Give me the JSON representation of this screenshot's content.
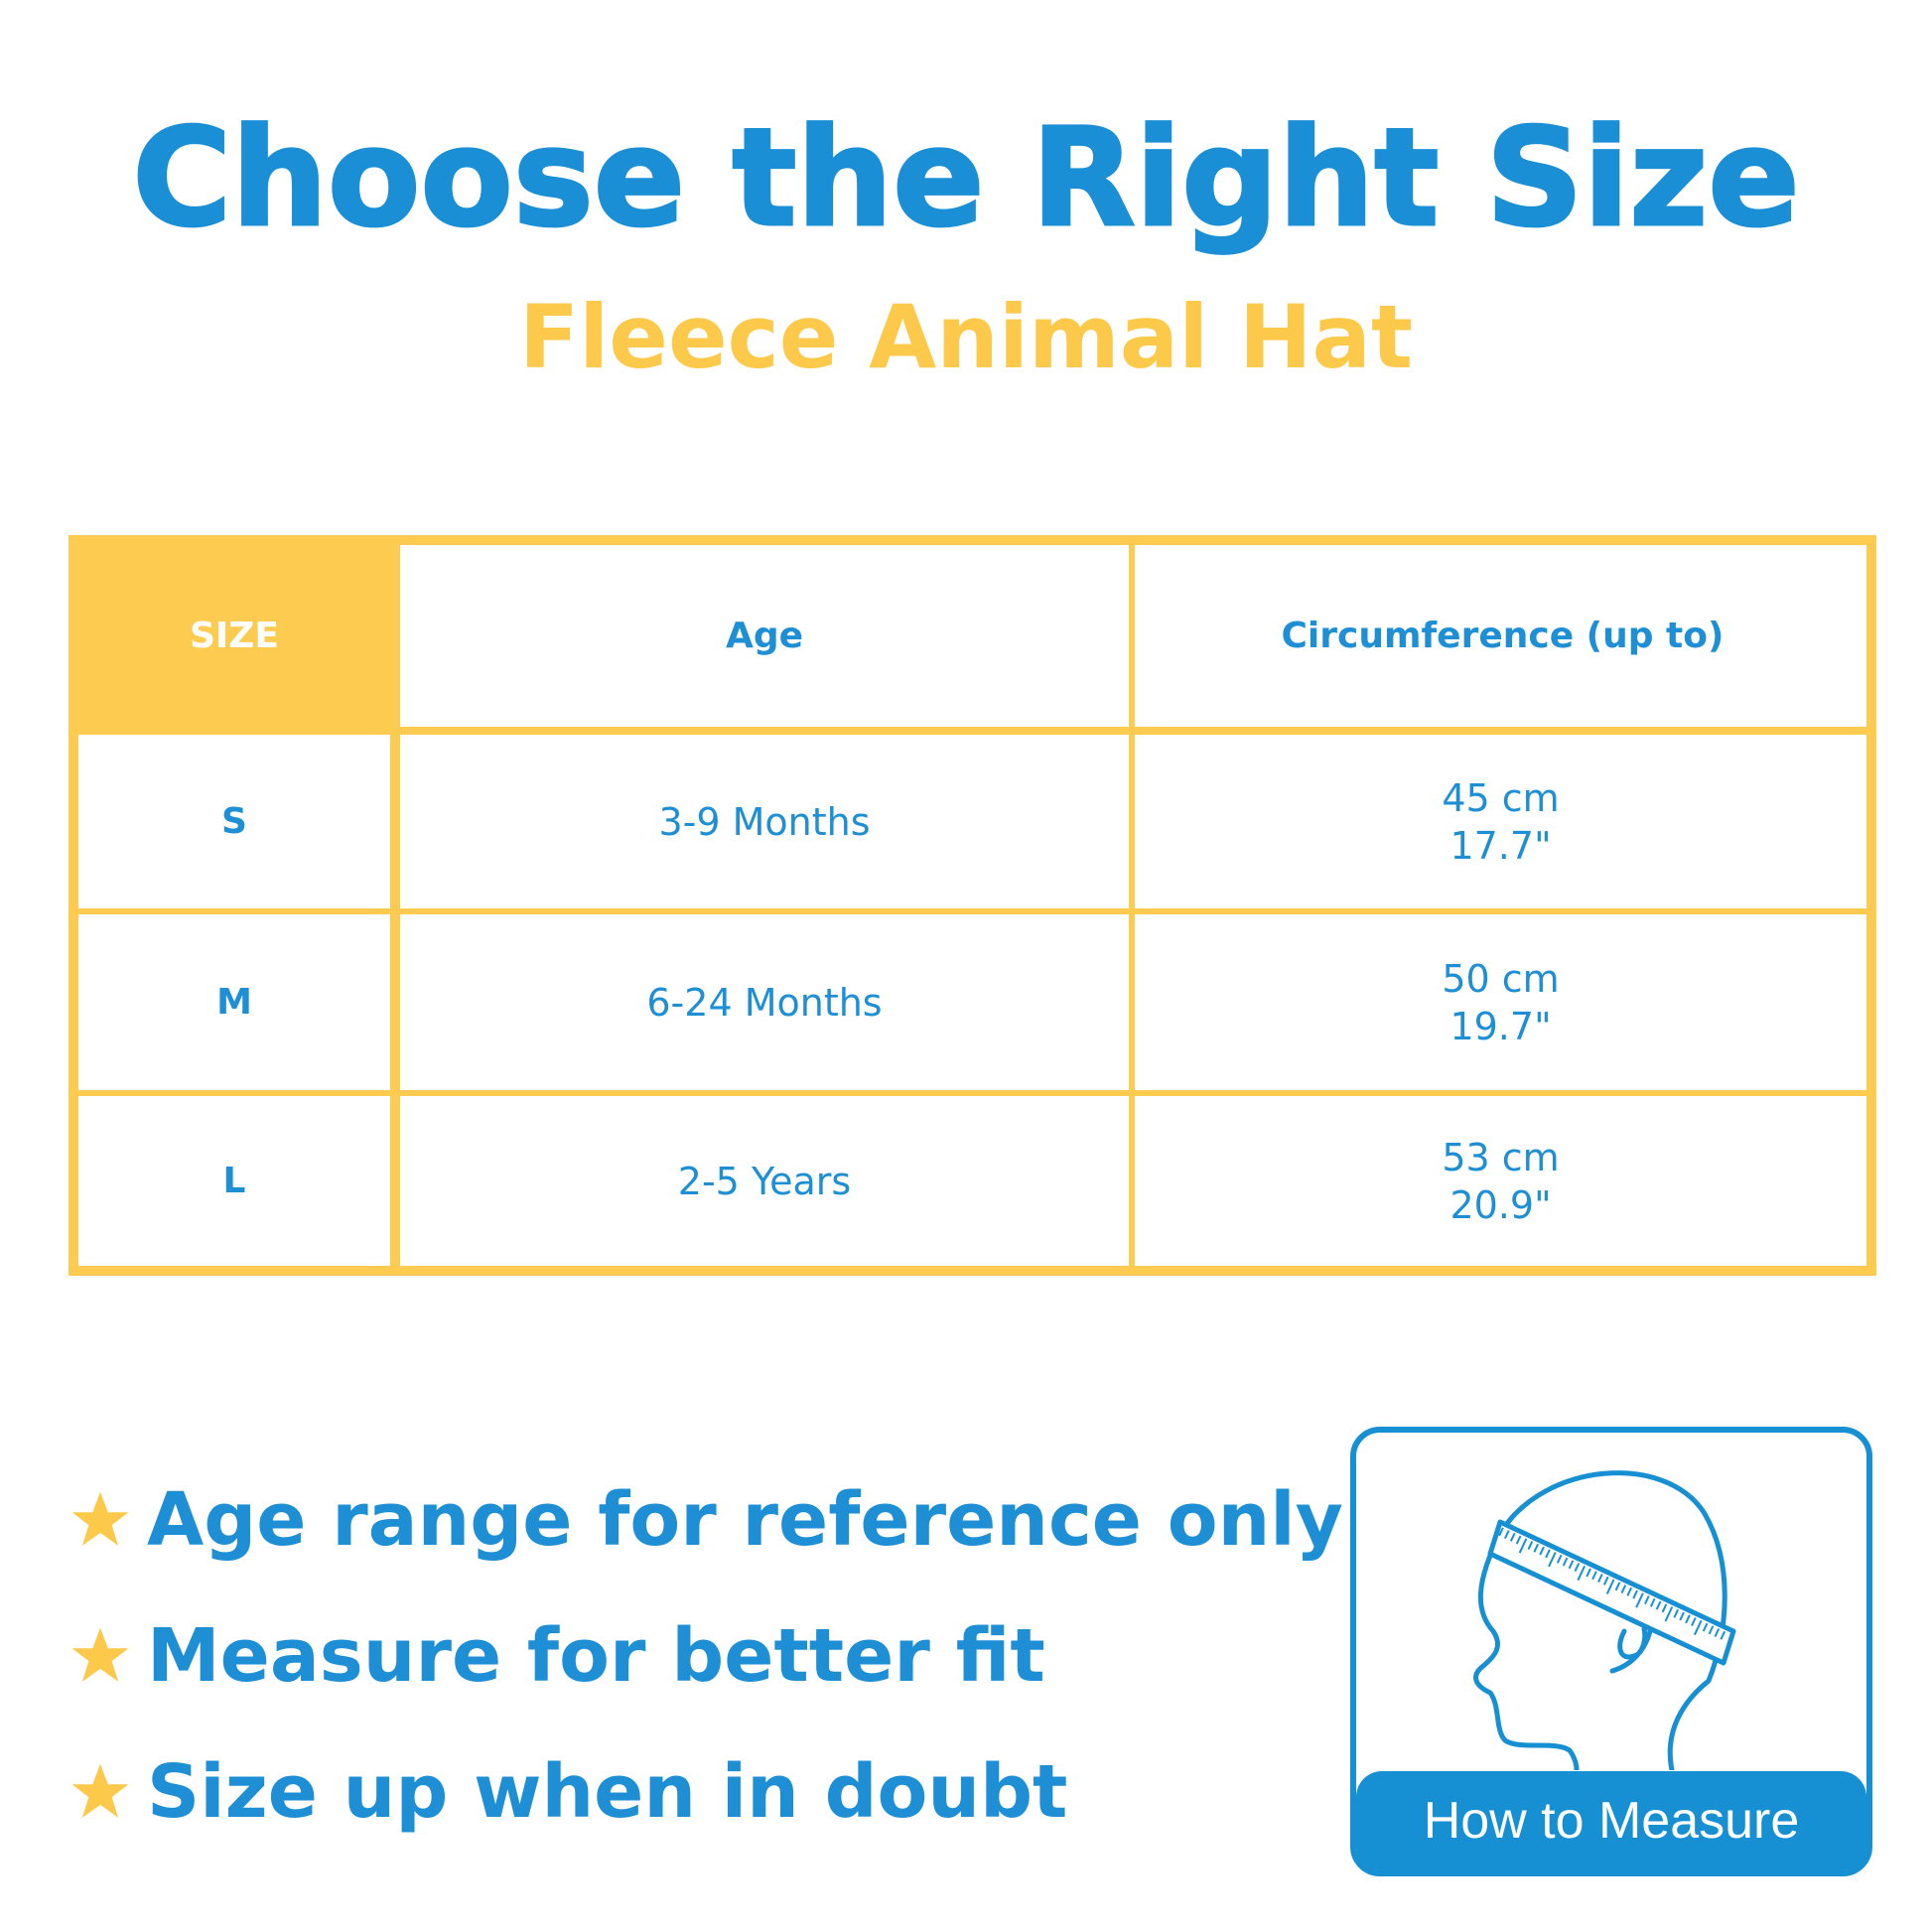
{
  "header": {
    "title": "Choose the Right Size",
    "subtitle": "Fleece Animal Hat"
  },
  "table": {
    "headers": [
      "SIZE",
      "Age",
      "Circumference (up to)"
    ],
    "rows": [
      {
        "size": "S",
        "age": "3-9 Months",
        "cm": "45 cm",
        "inch": "17.7\""
      },
      {
        "size": "M",
        "age": "6-24 Months",
        "cm": "50 cm",
        "inch": "19.7\""
      },
      {
        "size": "L",
        "age": "2-5 Years",
        "cm": "53 cm",
        "inch": "20.9\""
      }
    ]
  },
  "notes": [
    "Age range for reference only",
    "Measure for better fit",
    "Size up when in doubt"
  ],
  "measure": {
    "label": "How to Measure",
    "icon": "head-measuring-tape-icon"
  },
  "colors": {
    "blue": "#1e8fd5",
    "yellow": "#fdcb50"
  }
}
